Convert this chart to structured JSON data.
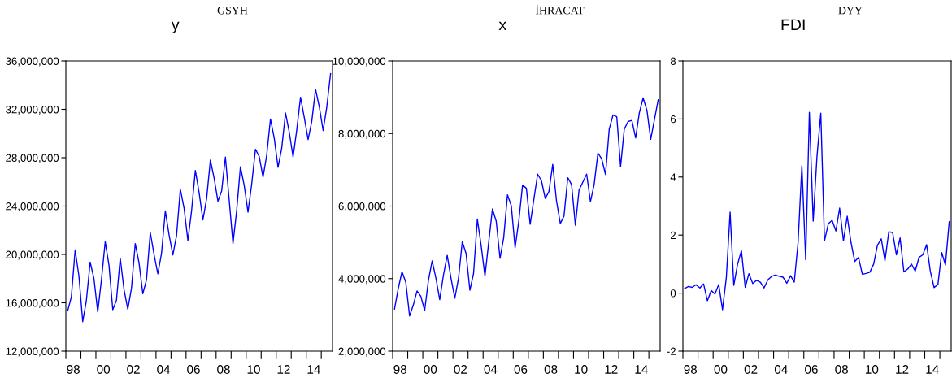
{
  "chart_data": [
    {
      "type": "line",
      "title": "y",
      "subtitle": "GSYH",
      "x": [
        "1998-02-15",
        "1998-05-15",
        "1998-08-15",
        "1998-11-15",
        "1999-02-15",
        "1999-05-15",
        "1999-08-15",
        "1999-11-15",
        "2000-02-15",
        "2000-05-15",
        "2000-08-15",
        "2000-11-15",
        "2001-02-15",
        "2001-05-15",
        "2001-08-15",
        "2001-11-15",
        "2002-02-15",
        "2002-05-15",
        "2002-08-15",
        "2002-11-15",
        "2003-02-15",
        "2003-05-15",
        "2003-08-15",
        "2003-11-15",
        "2004-02-15",
        "2004-05-15",
        "2004-08-15",
        "2004-11-15",
        "2005-02-15",
        "2005-05-15",
        "2005-08-15",
        "2005-11-15",
        "2006-02-15",
        "2006-05-15",
        "2006-08-15",
        "2006-11-15",
        "2007-02-15",
        "2007-05-15",
        "2007-08-15",
        "2007-11-15",
        "2008-02-15",
        "2008-05-15",
        "2008-08-15",
        "2008-11-15",
        "2009-02-15",
        "2009-05-15",
        "2009-08-15",
        "2009-11-15",
        "2010-02-15",
        "2010-05-15",
        "2010-08-15",
        "2010-11-15",
        "2011-02-15",
        "2011-05-15",
        "2011-08-15",
        "2011-11-15",
        "2012-02-15",
        "2012-05-15",
        "2012-08-15",
        "2012-11-15",
        "2013-02-15",
        "2013-05-15",
        "2013-08-15",
        "2013-11-15",
        "2014-02-15",
        "2014-05-15",
        "2014-08-15",
        "2014-11-15",
        "2015-02-15",
        "2015-05-15",
        "2015-08-15"
      ],
      "series": [
        {
          "color": "#0000ff",
          "values": [
            15340000,
            16500000,
            20370000,
            18200000,
            14440000,
            16200000,
            19370000,
            18000000,
            15250000,
            17900000,
            21050000,
            19100000,
            15430000,
            16200000,
            19700000,
            17100000,
            15470000,
            17200000,
            20900000,
            19300000,
            16750000,
            17900000,
            21800000,
            20000000,
            18400000,
            20100000,
            23600000,
            21600000,
            19950000,
            21550000,
            25400000,
            23800000,
            21150000,
            23600000,
            26950000,
            25100000,
            22860000,
            24600000,
            27800000,
            26300000,
            24400000,
            25250000,
            28050000,
            24500000,
            20900000,
            23600000,
            27250000,
            25700000,
            23500000,
            25800000,
            28700000,
            28100000,
            26400000,
            28200000,
            31200000,
            29600000,
            27200000,
            28800000,
            31700000,
            30100000,
            28050000,
            30300000,
            33000000,
            31300000,
            29500000,
            31000000,
            33650000,
            32200000,
            30250000,
            32200000,
            34950000
          ]
        }
      ],
      "xlim": [
        "1998-01-01",
        "2015-10-01"
      ],
      "xticks": [
        {
          "value": "1998-01-01",
          "label": null
        },
        {
          "value": "1999-01-01",
          "label": null
        },
        {
          "value": "2000-01-01",
          "label": null
        },
        {
          "value": "2001-01-01",
          "label": null
        },
        {
          "value": "2002-01-01",
          "label": null
        },
        {
          "value": "2003-01-01",
          "label": null
        },
        {
          "value": "2004-01-01",
          "label": null
        },
        {
          "value": "2005-01-01",
          "label": null
        },
        {
          "value": "2006-01-01",
          "label": null
        },
        {
          "value": "2007-01-01",
          "label": null
        },
        {
          "value": "2008-01-01",
          "label": null
        },
        {
          "value": "2009-01-01",
          "label": null
        },
        {
          "value": "2010-01-01",
          "label": null
        },
        {
          "value": "2011-01-01",
          "label": null
        },
        {
          "value": "2012-01-01",
          "label": null
        },
        {
          "value": "2013-01-01",
          "label": null
        },
        {
          "value": "2014-01-01",
          "label": null
        },
        {
          "value": "2015-01-01",
          "label": null
        },
        {
          "value": "1998-07-01",
          "label": "98"
        },
        {
          "value": "2000-07-01",
          "label": "00"
        },
        {
          "value": "2002-07-01",
          "label": "02"
        },
        {
          "value": "2004-07-01",
          "label": "04"
        },
        {
          "value": "2006-07-01",
          "label": "06"
        },
        {
          "value": "2008-07-01",
          "label": "08"
        },
        {
          "value": "2010-07-01",
          "label": "10"
        },
        {
          "value": "2012-07-01",
          "label": "12"
        },
        {
          "value": "2014-07-01",
          "label": "14"
        }
      ],
      "ylim": [
        12000000,
        36000000
      ],
      "yticks": [
        {
          "value": 12000000,
          "label": "12,000,000"
        },
        {
          "value": 16000000,
          "label": "16,000,000"
        },
        {
          "value": 20000000,
          "label": "20,000,000"
        },
        {
          "value": 24000000,
          "label": "24,000,000"
        },
        {
          "value": 28000000,
          "label": "28,000,000"
        },
        {
          "value": 32000000,
          "label": "32,000,000"
        },
        {
          "value": 36000000,
          "label": "36,000,000"
        }
      ]
    },
    {
      "type": "line",
      "title": "x",
      "subtitle": "İHRACAT",
      "x": [
        "1998-02-15",
        "1998-05-15",
        "1998-08-15",
        "1998-11-15",
        "1999-02-15",
        "1999-05-15",
        "1999-08-15",
        "1999-11-15",
        "2000-02-15",
        "2000-05-15",
        "2000-08-15",
        "2000-11-15",
        "2001-02-15",
        "2001-05-15",
        "2001-08-15",
        "2001-11-15",
        "2002-02-15",
        "2002-05-15",
        "2002-08-15",
        "2002-11-15",
        "2003-02-15",
        "2003-05-15",
        "2003-08-15",
        "2003-11-15",
        "2004-02-15",
        "2004-05-15",
        "2004-08-15",
        "2004-11-15",
        "2005-02-15",
        "2005-05-15",
        "2005-08-15",
        "2005-11-15",
        "2006-02-15",
        "2006-05-15",
        "2006-08-15",
        "2006-11-15",
        "2007-02-15",
        "2007-05-15",
        "2007-08-15",
        "2007-11-15",
        "2008-02-15",
        "2008-05-15",
        "2008-08-15",
        "2008-11-15",
        "2009-02-15",
        "2009-05-15",
        "2009-08-15",
        "2009-11-15",
        "2010-02-15",
        "2010-05-15",
        "2010-08-15",
        "2010-11-15",
        "2011-02-15",
        "2011-05-15",
        "2011-08-15",
        "2011-11-15",
        "2012-02-15",
        "2012-05-15",
        "2012-08-15",
        "2012-11-15",
        "2013-02-15",
        "2013-05-15",
        "2013-08-15",
        "2013-11-15",
        "2014-02-15",
        "2014-05-15",
        "2014-08-15",
        "2014-11-15",
        "2015-02-15",
        "2015-05-15",
        "2015-08-15"
      ],
      "series": [
        {
          "color": "#0000ff",
          "values": [
            3160000,
            3720000,
            4190000,
            3900000,
            2970000,
            3270000,
            3660000,
            3510000,
            3120000,
            3940000,
            4490000,
            4010000,
            3420000,
            4090000,
            4640000,
            4010000,
            3460000,
            4010000,
            5020000,
            4690000,
            3680000,
            4140000,
            5640000,
            4910000,
            4070000,
            4990000,
            5920000,
            5580000,
            4560000,
            5130000,
            6310000,
            6010000,
            4850000,
            5580000,
            6580000,
            6490000,
            5500000,
            6180000,
            6880000,
            6700000,
            6210000,
            6400000,
            7150000,
            6140000,
            5520000,
            5720000,
            6780000,
            6590000,
            5470000,
            6440000,
            6660000,
            6880000,
            6120000,
            6590000,
            7460000,
            7300000,
            6870000,
            8120000,
            8510000,
            8460000,
            7090000,
            8120000,
            8330000,
            8360000,
            7880000,
            8570000,
            8980000,
            8640000,
            7840000,
            8380000,
            8930000
          ]
        }
      ],
      "xlim": [
        "1998-01-01",
        "2015-10-01"
      ],
      "xticks": [
        {
          "value": "1998-01-01",
          "label": null
        },
        {
          "value": "1999-01-01",
          "label": null
        },
        {
          "value": "2000-01-01",
          "label": null
        },
        {
          "value": "2001-01-01",
          "label": null
        },
        {
          "value": "2002-01-01",
          "label": null
        },
        {
          "value": "2003-01-01",
          "label": null
        },
        {
          "value": "2004-01-01",
          "label": null
        },
        {
          "value": "2005-01-01",
          "label": null
        },
        {
          "value": "2006-01-01",
          "label": null
        },
        {
          "value": "2007-01-01",
          "label": null
        },
        {
          "value": "2008-01-01",
          "label": null
        },
        {
          "value": "2009-01-01",
          "label": null
        },
        {
          "value": "2010-01-01",
          "label": null
        },
        {
          "value": "2011-01-01",
          "label": null
        },
        {
          "value": "2012-01-01",
          "label": null
        },
        {
          "value": "2013-01-01",
          "label": null
        },
        {
          "value": "2014-01-01",
          "label": null
        },
        {
          "value": "2015-01-01",
          "label": null
        },
        {
          "value": "1998-07-01",
          "label": "98"
        },
        {
          "value": "2000-07-01",
          "label": "00"
        },
        {
          "value": "2002-07-01",
          "label": "02"
        },
        {
          "value": "2004-07-01",
          "label": "04"
        },
        {
          "value": "2006-07-01",
          "label": "06"
        },
        {
          "value": "2008-07-01",
          "label": "08"
        },
        {
          "value": "2010-07-01",
          "label": "10"
        },
        {
          "value": "2012-07-01",
          "label": "12"
        },
        {
          "value": "2014-07-01",
          "label": "14"
        }
      ],
      "ylim": [
        2000000,
        10000000
      ],
      "yticks": [
        {
          "value": 2000000,
          "label": "2,000,000"
        },
        {
          "value": 4000000,
          "label": "4,000,000"
        },
        {
          "value": 6000000,
          "label": "6,000,000"
        },
        {
          "value": 8000000,
          "label": "8,000,000"
        },
        {
          "value": 10000000,
          "label": "10,000,000"
        }
      ]
    },
    {
      "type": "line",
      "title": "FDI",
      "subtitle": "DYY",
      "x": [
        "1998-02-15",
        "1998-05-15",
        "1998-08-15",
        "1998-11-15",
        "1999-02-15",
        "1999-05-15",
        "1999-08-15",
        "1999-11-15",
        "2000-02-15",
        "2000-05-15",
        "2000-08-15",
        "2000-11-15",
        "2001-02-15",
        "2001-05-15",
        "2001-08-15",
        "2001-11-15",
        "2002-02-15",
        "2002-05-15",
        "2002-08-15",
        "2002-11-15",
        "2003-02-15",
        "2003-05-15",
        "2003-08-15",
        "2003-11-15",
        "2004-02-15",
        "2004-05-15",
        "2004-08-15",
        "2004-11-15",
        "2005-02-15",
        "2005-05-15",
        "2005-08-15",
        "2005-11-15",
        "2006-02-15",
        "2006-05-15",
        "2006-08-15",
        "2006-11-15",
        "2007-02-15",
        "2007-05-15",
        "2007-08-15",
        "2007-11-15",
        "2008-02-15",
        "2008-05-15",
        "2008-08-15",
        "2008-11-15",
        "2009-02-15",
        "2009-05-15",
        "2009-08-15",
        "2009-11-15",
        "2010-02-15",
        "2010-05-15",
        "2010-08-15",
        "2010-11-15",
        "2011-02-15",
        "2011-05-15",
        "2011-08-15",
        "2011-11-15",
        "2012-02-15",
        "2012-05-15",
        "2012-08-15",
        "2012-11-15",
        "2013-02-15",
        "2013-05-15",
        "2013-08-15",
        "2013-11-15",
        "2014-02-15",
        "2014-05-15",
        "2014-08-15",
        "2014-11-15",
        "2015-02-15",
        "2015-05-15",
        "2015-08-15"
      ],
      "series": [
        {
          "color": "#0000ff",
          "values": [
            0.16,
            0.23,
            0.2,
            0.29,
            0.18,
            0.32,
            -0.26,
            0.09,
            -0.03,
            0.3,
            -0.57,
            0.53,
            2.79,
            0.27,
            1.0,
            1.46,
            0.2,
            0.67,
            0.33,
            0.44,
            0.38,
            0.18,
            0.46,
            0.58,
            0.62,
            0.58,
            0.55,
            0.34,
            0.6,
            0.38,
            1.74,
            4.39,
            1.15,
            6.23,
            2.48,
            4.72,
            6.2,
            1.8,
            2.39,
            2.51,
            2.14,
            2.93,
            1.8,
            2.65,
            1.74,
            1.09,
            1.23,
            0.65,
            0.68,
            0.72,
            1.0,
            1.65,
            1.87,
            1.11,
            2.11,
            2.09,
            1.32,
            1.9,
            0.73,
            0.83,
            1.0,
            0.76,
            1.23,
            1.32,
            1.67,
            0.76,
            0.19,
            0.3,
            1.4,
            0.97,
            2.46
          ]
        }
      ],
      "xlim": [
        "1998-01-01",
        "2015-10-01"
      ],
      "xticks": [
        {
          "value": "1998-01-01",
          "label": null
        },
        {
          "value": "1999-01-01",
          "label": null
        },
        {
          "value": "2000-01-01",
          "label": null
        },
        {
          "value": "2001-01-01",
          "label": null
        },
        {
          "value": "2002-01-01",
          "label": null
        },
        {
          "value": "2003-01-01",
          "label": null
        },
        {
          "value": "2004-01-01",
          "label": null
        },
        {
          "value": "2005-01-01",
          "label": null
        },
        {
          "value": "2006-01-01",
          "label": null
        },
        {
          "value": "2007-01-01",
          "label": null
        },
        {
          "value": "2008-01-01",
          "label": null
        },
        {
          "value": "2009-01-01",
          "label": null
        },
        {
          "value": "2010-01-01",
          "label": null
        },
        {
          "value": "2011-01-01",
          "label": null
        },
        {
          "value": "2012-01-01",
          "label": null
        },
        {
          "value": "2013-01-01",
          "label": null
        },
        {
          "value": "2014-01-01",
          "label": null
        },
        {
          "value": "2015-01-01",
          "label": null
        },
        {
          "value": "1998-07-01",
          "label": "98"
        },
        {
          "value": "2000-07-01",
          "label": "00"
        },
        {
          "value": "2002-07-01",
          "label": "02"
        },
        {
          "value": "2004-07-01",
          "label": "04"
        },
        {
          "value": "2006-07-01",
          "label": "06"
        },
        {
          "value": "2008-07-01",
          "label": "08"
        },
        {
          "value": "2010-07-01",
          "label": "10"
        },
        {
          "value": "2012-07-01",
          "label": "12"
        },
        {
          "value": "2014-07-01",
          "label": "14"
        }
      ],
      "ylim": [
        -2,
        8
      ],
      "yticks": [
        -2,
        0,
        2,
        4,
        6,
        8
      ]
    }
  ]
}
